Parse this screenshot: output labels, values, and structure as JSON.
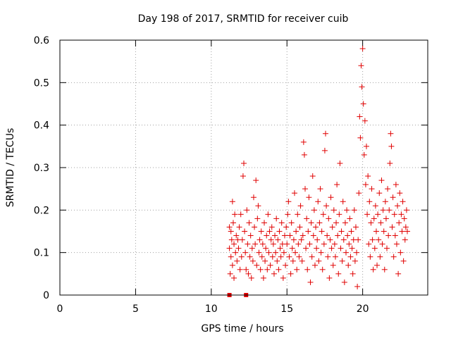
{
  "chart_data": {
    "type": "scatter",
    "title": "Day 198 of 2017, SRMTID for receiver cuib",
    "xlabel": "GPS time / hours",
    "ylabel": "SRMTID / TECUs",
    "xlim": [
      0,
      24.3
    ],
    "ylim": [
      0,
      0.6
    ],
    "x_ticks": [
      0,
      5,
      10,
      15,
      20
    ],
    "x_tick_labels": [
      "0",
      "5",
      "10",
      "15",
      "20"
    ],
    "y_ticks": [
      0,
      0.1,
      0.2,
      0.3,
      0.4,
      0.5,
      0.6
    ],
    "y_tick_labels": [
      "0",
      "0.1",
      "0.2",
      "0.3",
      "0.4",
      "0.5",
      "0.6"
    ],
    "grid": true,
    "marker": "+",
    "color": "#e00000",
    "series": [
      {
        "name": "SRMTID",
        "points": [
          [
            11.2,
            0.16
          ],
          [
            11.2,
            0.11
          ],
          [
            11.25,
            0.05
          ],
          [
            11.3,
            0.15
          ],
          [
            11.3,
            0.09
          ],
          [
            11.35,
            0.13
          ],
          [
            11.4,
            0.22
          ],
          [
            11.4,
            0.07
          ],
          [
            11.45,
            0.17
          ],
          [
            11.5,
            0.12
          ],
          [
            11.5,
            0.04
          ],
          [
            11.55,
            0.19
          ],
          [
            11.6,
            0.1
          ],
          [
            11.65,
            0.14
          ],
          [
            11.7,
            0.08
          ],
          [
            11.75,
            0.13
          ],
          [
            11.8,
            0.11
          ],
          [
            11.85,
            0.16
          ],
          [
            11.9,
            0.06
          ],
          [
            11.95,
            0.19
          ],
          [
            12.0,
            0.09
          ],
          [
            12.05,
            0.13
          ],
          [
            12.1,
            0.28
          ],
          [
            12.15,
            0.31
          ],
          [
            12.2,
            0.15
          ],
          [
            12.25,
            0.1
          ],
          [
            12.3,
            0.06
          ],
          [
            12.35,
            0.2
          ],
          [
            12.4,
            0.12
          ],
          [
            12.45,
            0.05
          ],
          [
            12.5,
            0.17
          ],
          [
            12.55,
            0.09
          ],
          [
            12.6,
            0.14
          ],
          [
            12.65,
            0.04
          ],
          [
            12.7,
            0.11
          ],
          [
            12.75,
            0.08
          ],
          [
            12.8,
            0.23
          ],
          [
            12.85,
            0.16
          ],
          [
            12.9,
            0.12
          ],
          [
            12.95,
            0.27
          ],
          [
            13.0,
            0.07
          ],
          [
            13.05,
            0.18
          ],
          [
            13.1,
            0.21
          ],
          [
            13.15,
            0.1
          ],
          [
            13.2,
            0.13
          ],
          [
            13.25,
            0.06
          ],
          [
            13.3,
            0.15
          ],
          [
            13.35,
            0.09
          ],
          [
            13.4,
            0.12
          ],
          [
            13.45,
            0.04
          ],
          [
            13.5,
            0.17
          ],
          [
            13.55,
            0.08
          ],
          [
            13.6,
            0.11
          ],
          [
            13.65,
            0.14
          ],
          [
            13.7,
            0.06
          ],
          [
            13.75,
            0.19
          ],
          [
            13.8,
            0.1
          ],
          [
            13.85,
            0.15
          ],
          [
            13.9,
            0.07
          ],
          [
            13.95,
            0.13
          ],
          [
            14.0,
            0.16
          ],
          [
            14.05,
            0.09
          ],
          [
            14.1,
            0.12
          ],
          [
            14.15,
            0.05
          ],
          [
            14.2,
            0.14
          ],
          [
            14.25,
            0.1
          ],
          [
            14.3,
            0.18
          ],
          [
            14.35,
            0.08
          ],
          [
            14.4,
            0.13
          ],
          [
            14.45,
            0.06
          ],
          [
            14.5,
            0.15
          ],
          [
            14.55,
            0.11
          ],
          [
            14.6,
            0.09
          ],
          [
            14.65,
            0.17
          ],
          [
            14.7,
            0.12
          ],
          [
            14.75,
            0.04
          ],
          [
            14.8,
            0.1
          ],
          [
            14.85,
            0.14
          ],
          [
            14.9,
            0.07
          ],
          [
            14.95,
            0.16
          ],
          [
            15.0,
            0.12
          ],
          [
            15.05,
            0.19
          ],
          [
            15.1,
            0.22
          ],
          [
            15.15,
            0.09
          ],
          [
            15.2,
            0.14
          ],
          [
            15.25,
            0.05
          ],
          [
            15.3,
            0.17
          ],
          [
            15.35,
            0.11
          ],
          [
            15.4,
            0.08
          ],
          [
            15.45,
            0.13
          ],
          [
            15.5,
            0.24
          ],
          [
            15.55,
            0.1
          ],
          [
            15.6,
            0.15
          ],
          [
            15.65,
            0.06
          ],
          [
            15.7,
            0.19
          ],
          [
            15.75,
            0.12
          ],
          [
            15.8,
            0.09
          ],
          [
            15.85,
            0.16
          ],
          [
            15.9,
            0.21
          ],
          [
            15.95,
            0.13
          ],
          [
            16.0,
            0.08
          ],
          [
            16.05,
            0.14
          ],
          [
            16.1,
            0.36
          ],
          [
            16.15,
            0.33
          ],
          [
            16.2,
            0.25
          ],
          [
            16.25,
            0.11
          ],
          [
            16.3,
            0.18
          ],
          [
            16.35,
            0.06
          ],
          [
            16.4,
            0.15
          ],
          [
            16.45,
            0.23
          ],
          [
            16.5,
            0.12
          ],
          [
            16.55,
            0.03
          ],
          [
            16.6,
            0.17
          ],
          [
            16.65,
            0.09
          ],
          [
            16.7,
            0.28
          ],
          [
            16.75,
            0.14
          ],
          [
            16.8,
            0.2
          ],
          [
            16.85,
            0.07
          ],
          [
            16.9,
            0.16
          ],
          [
            16.95,
            0.11
          ],
          [
            17.0,
            0.13
          ],
          [
            17.05,
            0.22
          ],
          [
            17.1,
            0.08
          ],
          [
            17.15,
            0.17
          ],
          [
            17.2,
            0.25
          ],
          [
            17.25,
            0.1
          ],
          [
            17.3,
            0.15
          ],
          [
            17.35,
            0.06
          ],
          [
            17.4,
            0.19
          ],
          [
            17.45,
            0.12
          ],
          [
            17.5,
            0.34
          ],
          [
            17.55,
            0.38
          ],
          [
            17.6,
            0.21
          ],
          [
            17.65,
            0.14
          ],
          [
            17.7,
            0.09
          ],
          [
            17.75,
            0.18
          ],
          [
            17.8,
            0.04
          ],
          [
            17.85,
            0.13
          ],
          [
            17.9,
            0.23
          ],
          [
            17.95,
            0.11
          ],
          [
            18.0,
            0.16
          ],
          [
            18.05,
            0.07
          ],
          [
            18.1,
            0.2
          ],
          [
            18.15,
            0.12
          ],
          [
            18.2,
            0.09
          ],
          [
            18.25,
            0.17
          ],
          [
            18.3,
            0.26
          ],
          [
            18.35,
            0.14
          ],
          [
            18.4,
            0.05
          ],
          [
            18.45,
            0.19
          ],
          [
            18.5,
            0.31
          ],
          [
            18.55,
            0.11
          ],
          [
            18.6,
            0.15
          ],
          [
            18.65,
            0.08
          ],
          [
            18.7,
            0.22
          ],
          [
            18.75,
            0.13
          ],
          [
            18.8,
            0.03
          ],
          [
            18.85,
            0.17
          ],
          [
            18.9,
            0.1
          ],
          [
            18.95,
            0.2
          ],
          [
            19.0,
            0.14
          ],
          [
            19.05,
            0.07
          ],
          [
            19.1,
            0.12
          ],
          [
            19.15,
            0.18
          ],
          [
            19.2,
            0.09
          ],
          [
            19.25,
            0.15
          ],
          [
            19.3,
            0.11
          ],
          [
            19.35,
            0.05
          ],
          [
            19.4,
            0.13
          ],
          [
            19.45,
            0.2
          ],
          [
            19.5,
            0.08
          ],
          [
            19.55,
            0.16
          ],
          [
            19.6,
            0.1
          ],
          [
            19.65,
            0.02
          ],
          [
            19.7,
            0.13
          ],
          [
            19.75,
            0.24
          ],
          [
            19.8,
            0.42
          ],
          [
            19.85,
            0.37
          ],
          [
            19.9,
            0.54
          ],
          [
            19.95,
            0.49
          ],
          [
            20.0,
            0.58
          ],
          [
            20.05,
            0.45
          ],
          [
            20.1,
            0.33
          ],
          [
            20.15,
            0.41
          ],
          [
            20.2,
            0.26
          ],
          [
            20.25,
            0.35
          ],
          [
            20.3,
            0.19
          ],
          [
            20.35,
            0.28
          ],
          [
            20.4,
            0.12
          ],
          [
            20.45,
            0.22
          ],
          [
            20.5,
            0.09
          ],
          [
            20.55,
            0.17
          ],
          [
            20.6,
            0.25
          ],
          [
            20.65,
            0.13
          ],
          [
            20.7,
            0.06
          ],
          [
            20.75,
            0.18
          ],
          [
            20.8,
            0.11
          ],
          [
            20.85,
            0.21
          ],
          [
            20.9,
            0.15
          ],
          [
            20.95,
            0.07
          ],
          [
            21.0,
            0.19
          ],
          [
            21.05,
            0.13
          ],
          [
            21.1,
            0.24
          ],
          [
            21.15,
            0.09
          ],
          [
            21.2,
            0.17
          ],
          [
            21.25,
            0.27
          ],
          [
            21.3,
            0.12
          ],
          [
            21.35,
            0.2
          ],
          [
            21.4,
            0.15
          ],
          [
            21.45,
            0.06
          ],
          [
            21.5,
            0.22
          ],
          [
            21.55,
            0.18
          ],
          [
            21.6,
            0.11
          ],
          [
            21.65,
            0.25
          ],
          [
            21.7,
            0.14
          ],
          [
            21.75,
            0.2
          ],
          [
            21.8,
            0.31
          ],
          [
            21.85,
            0.38
          ],
          [
            21.9,
            0.35
          ],
          [
            21.95,
            0.16
          ],
          [
            22.0,
            0.23
          ],
          [
            22.05,
            0.09
          ],
          [
            22.1,
            0.19
          ],
          [
            22.15,
            0.14
          ],
          [
            22.2,
            0.26
          ],
          [
            22.25,
            0.12
          ],
          [
            22.3,
            0.21
          ],
          [
            22.35,
            0.05
          ],
          [
            22.4,
            0.17
          ],
          [
            22.45,
            0.24
          ],
          [
            22.5,
            0.1
          ],
          [
            22.55,
            0.19
          ],
          [
            22.6,
            0.15
          ],
          [
            22.65,
            0.22
          ],
          [
            22.7,
            0.08
          ],
          [
            22.75,
            0.18
          ],
          [
            22.8,
            0.13
          ],
          [
            22.85,
            0.16
          ],
          [
            22.9,
            0.2
          ],
          [
            22.95,
            0.15
          ]
        ]
      }
    ],
    "extra_marks": [
      {
        "x": 11.2,
        "y": 0.0,
        "marker": "square"
      },
      {
        "x": 12.3,
        "y": 0.0,
        "marker": "square"
      }
    ]
  }
}
